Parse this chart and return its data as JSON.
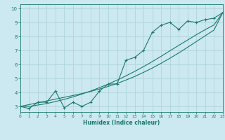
{
  "title": "",
  "xlabel": "Humidex (Indice chaleur)",
  "ylabel": "",
  "bg_color": "#cce8f0",
  "grid_color": "#b0d4de",
  "line_color": "#1a7a6e",
  "x_data": [
    0,
    1,
    2,
    3,
    4,
    5,
    6,
    7,
    8,
    9,
    10,
    11,
    12,
    13,
    14,
    15,
    16,
    17,
    18,
    19,
    20,
    21,
    22,
    23
  ],
  "y_zigzag": [
    3.0,
    2.85,
    3.3,
    3.3,
    4.1,
    2.9,
    3.3,
    3.0,
    3.3,
    4.1,
    4.6,
    4.6,
    6.3,
    6.5,
    7.0,
    8.3,
    8.8,
    9.0,
    8.5,
    9.1,
    9.0,
    9.2,
    9.3,
    9.7
  ],
  "y_line1": [
    3.0,
    3.13,
    3.26,
    3.39,
    3.52,
    3.65,
    3.78,
    3.92,
    4.07,
    4.24,
    4.43,
    4.64,
    4.88,
    5.14,
    5.43,
    5.74,
    6.08,
    6.44,
    6.82,
    7.22,
    7.63,
    8.04,
    8.45,
    9.7
  ],
  "y_line2": [
    3.0,
    3.0,
    3.1,
    3.2,
    3.35,
    3.5,
    3.68,
    3.88,
    4.1,
    4.34,
    4.6,
    4.88,
    5.18,
    5.5,
    5.84,
    6.2,
    6.58,
    6.97,
    7.36,
    7.74,
    8.12,
    8.48,
    8.82,
    9.7
  ],
  "xlim": [
    0,
    23
  ],
  "ylim": [
    2.6,
    10.3
  ],
  "yticks": [
    3,
    4,
    5,
    6,
    7,
    8,
    9,
    10
  ],
  "xticks": [
    0,
    1,
    2,
    3,
    4,
    5,
    6,
    7,
    8,
    9,
    10,
    11,
    12,
    13,
    14,
    15,
    16,
    17,
    18,
    19,
    20,
    21,
    22,
    23
  ]
}
